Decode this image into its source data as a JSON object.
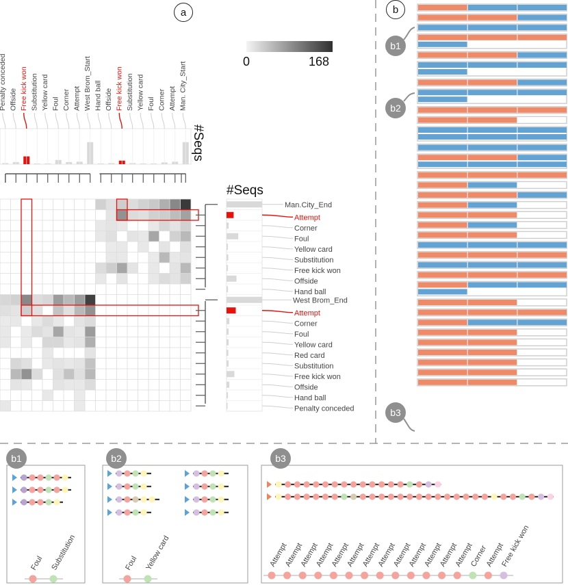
{
  "panel_labels": {
    "a": "a",
    "b": "b",
    "b1": "b1",
    "b2": "b2",
    "b3": "b3"
  },
  "legend": {
    "min": "0",
    "max": "168",
    "gradient_from": "#f4f4f4",
    "gradient_to": "#303030"
  },
  "colors": {
    "highlight": "#e8120c",
    "orange": "#ee8a68",
    "blue": "#63a3d4",
    "frame": "#cfcfcf",
    "badge": "#8f8f8f"
  },
  "seqs_label": "#Seqs",
  "top_labels": [
    "Penalty conceded",
    "Offside",
    "Free kick won",
    "Substitution",
    "Yellow card",
    "Foul",
    "Corner",
    "Attempt",
    "West Brom_Start",
    "Hand ball",
    "Offside",
    "Free kick won",
    "Substitution",
    "Yellow card",
    "Foul",
    "Corner",
    "Attempt",
    "Man. City_Start"
  ],
  "top_highlight": [
    2,
    11
  ],
  "top_hist": [
    0.03,
    0.06,
    0.22,
    0.02,
    0.02,
    0.12,
    0.06,
    0.07,
    0.62,
    0.02,
    0.03,
    0.1,
    0.03,
    0.02,
    0.02,
    0.05,
    0.07,
    0.62
  ],
  "right_labels": [
    "Man.City_End",
    "Attempt",
    "Corner",
    "Foul",
    "Yellow card",
    "Substitution",
    "Free kick won",
    "Offside",
    "Hand ball",
    "West Brom_End",
    "Attempt",
    "Corner",
    "Foul",
    "Yellow card",
    "Red card",
    "Substitution",
    "Free kick won",
    "Offside",
    "Hand ball",
    "Penalty conceded"
  ],
  "right_highlight": [
    1,
    10
  ],
  "right_hist": [
    1.0,
    0.2,
    0.06,
    0.33,
    0.04,
    0.05,
    0.04,
    0.28,
    0.04,
    1.0,
    0.26,
    0.08,
    0.06,
    0.06,
    0.05,
    0.06,
    0.22,
    0.08,
    0.04,
    0.03
  ],
  "matrix": {
    "rows": 20,
    "cols": 18,
    "cells": [
      [
        0,
        9,
        0.18
      ],
      [
        0,
        10,
        0.1
      ],
      [
        0,
        11,
        0.2
      ],
      [
        0,
        12,
        0.12
      ],
      [
        0,
        13,
        0.18
      ],
      [
        0,
        14,
        0.22
      ],
      [
        0,
        15,
        0.35
      ],
      [
        0,
        16,
        0.55
      ],
      [
        0,
        17,
        0.95
      ],
      [
        1,
        10,
        0.08
      ],
      [
        1,
        11,
        0.5
      ],
      [
        1,
        12,
        0.12
      ],
      [
        1,
        13,
        0.1
      ],
      [
        1,
        14,
        0.18
      ],
      [
        1,
        15,
        0.2
      ],
      [
        1,
        16,
        0.28
      ],
      [
        1,
        17,
        0.42
      ],
      [
        2,
        9,
        0.06
      ],
      [
        2,
        10,
        0.08
      ],
      [
        2,
        11,
        0.06
      ],
      [
        2,
        14,
        0.06
      ],
      [
        2,
        15,
        0.15
      ],
      [
        2,
        16,
        0.08
      ],
      [
        2,
        17,
        0.18
      ],
      [
        3,
        9,
        0.06
      ],
      [
        3,
        10,
        0.1
      ],
      [
        3,
        12,
        0.08
      ],
      [
        3,
        13,
        0.06
      ],
      [
        3,
        14,
        0.4
      ],
      [
        3,
        16,
        0.18
      ],
      [
        3,
        17,
        0.3
      ],
      [
        4,
        10,
        0.05
      ],
      [
        4,
        11,
        0.06
      ],
      [
        4,
        13,
        0.06
      ],
      [
        4,
        15,
        0.08
      ],
      [
        4,
        17,
        0.1
      ],
      [
        5,
        10,
        0.06
      ],
      [
        5,
        11,
        0.06
      ],
      [
        5,
        14,
        0.05
      ],
      [
        5,
        15,
        0.3
      ],
      [
        5,
        16,
        0.06
      ],
      [
        5,
        17,
        0.08
      ],
      [
        6,
        9,
        0.12
      ],
      [
        6,
        10,
        0.2
      ],
      [
        6,
        11,
        0.4
      ],
      [
        6,
        12,
        0.08
      ],
      [
        6,
        14,
        0.06
      ],
      [
        6,
        16,
        0.08
      ],
      [
        6,
        17,
        0.3
      ],
      [
        7,
        9,
        0.06
      ],
      [
        7,
        11,
        0.08
      ],
      [
        7,
        14,
        0.06
      ],
      [
        7,
        15,
        0.12
      ],
      [
        7,
        16,
        0.08
      ],
      [
        7,
        17,
        0.18
      ],
      [
        9,
        0,
        0.15
      ],
      [
        9,
        1,
        0.18
      ],
      [
        9,
        2,
        0.55
      ],
      [
        9,
        3,
        0.12
      ],
      [
        9,
        4,
        0.15
      ],
      [
        9,
        5,
        0.45
      ],
      [
        9,
        6,
        0.3
      ],
      [
        9,
        7,
        0.45
      ],
      [
        9,
        8,
        0.92
      ],
      [
        10,
        0,
        0.1
      ],
      [
        10,
        1,
        0.08
      ],
      [
        10,
        2,
        0.2
      ],
      [
        10,
        3,
        0.1
      ],
      [
        10,
        5,
        0.25
      ],
      [
        10,
        6,
        0.1
      ],
      [
        10,
        7,
        0.3
      ],
      [
        10,
        8,
        0.5
      ],
      [
        11,
        0,
        0.05
      ],
      [
        11,
        1,
        0.06
      ],
      [
        11,
        3,
        0.06
      ],
      [
        11,
        4,
        0.12
      ],
      [
        11,
        5,
        0.06
      ],
      [
        11,
        7,
        0.08
      ],
      [
        11,
        8,
        0.12
      ],
      [
        12,
        0,
        0.06
      ],
      [
        12,
        2,
        0.05
      ],
      [
        12,
        3,
        0.12
      ],
      [
        12,
        4,
        0.08
      ],
      [
        12,
        5,
        0.4
      ],
      [
        12,
        6,
        0.08
      ],
      [
        12,
        7,
        0.06
      ],
      [
        12,
        8,
        0.45
      ],
      [
        13,
        0,
        0.06
      ],
      [
        13,
        2,
        0.05
      ],
      [
        13,
        4,
        0.15
      ],
      [
        13,
        5,
        0.15
      ],
      [
        13,
        6,
        0.06
      ],
      [
        13,
        7,
        0.08
      ],
      [
        13,
        8,
        0.35
      ],
      [
        14,
        4,
        0.06
      ],
      [
        14,
        8,
        0.08
      ],
      [
        15,
        1,
        0.15
      ],
      [
        15,
        2,
        0.1
      ],
      [
        15,
        4,
        0.06
      ],
      [
        15,
        5,
        0.08
      ],
      [
        15,
        6,
        0.06
      ],
      [
        15,
        7,
        0.08
      ],
      [
        15,
        8,
        0.25
      ],
      [
        16,
        1,
        0.3
      ],
      [
        16,
        2,
        0.5
      ],
      [
        16,
        3,
        0.12
      ],
      [
        16,
        5,
        0.1
      ],
      [
        16,
        6,
        0.25
      ],
      [
        16,
        7,
        0.1
      ],
      [
        16,
        8,
        0.3
      ],
      [
        17,
        1,
        0.08
      ],
      [
        17,
        2,
        0.06
      ],
      [
        17,
        5,
        0.08
      ],
      [
        17,
        6,
        0.06
      ],
      [
        17,
        7,
        0.06
      ],
      [
        17,
        8,
        0.12
      ],
      [
        18,
        4,
        0.06
      ],
      [
        18,
        7,
        0.05
      ],
      [
        19,
        0,
        0.06
      ],
      [
        19,
        7,
        0.05
      ]
    ]
  },
  "seq_rows": [
    {
      "lane_colors": [
        "orange",
        "blue",
        "blue"
      ],
      "second_lane": ""
    },
    {
      "lane_colors": [
        "orange",
        "orange",
        "blue"
      ],
      "second_lane": ""
    },
    {
      "lane_colors": [
        "blue",
        "blue",
        "blue"
      ],
      "second_lane": ""
    },
    {
      "lane_colors": [
        "orange",
        "orange",
        "orange"
      ],
      "second_lane": "blue"
    },
    {
      "lane_colors": [
        "orange",
        "orange",
        "blue"
      ],
      "second_lane": ""
    },
    {
      "lane_colors": [
        "blue",
        "blue",
        "blue"
      ],
      "second_lane": "blue"
    },
    {
      "lane_colors": [
        "orange",
        "orange",
        "blue"
      ],
      "second_lane": ""
    },
    {
      "lane_colors": [
        "blue",
        "blue",
        "blue"
      ],
      "second_lane": "blue"
    },
    {
      "lane_colors": [
        "orange",
        "orange",
        "orange"
      ],
      "second_lane": ""
    },
    {
      "lane_colors": [
        "orange",
        "orange",
        ""
      ],
      "second_lane": ""
    },
    {
      "lane_colors": [
        "blue",
        "blue",
        "blue"
      ],
      "second_lane": "blue3"
    },
    {
      "lane_colors": [
        "blue",
        "blue",
        "blue"
      ],
      "second_lane": ""
    },
    {
      "lane_colors": [
        "orange",
        "orange",
        "blue"
      ],
      "second_lane": "blue3"
    },
    {
      "lane_colors": [
        "orange",
        "orange",
        "orange"
      ],
      "second_lane": ""
    },
    {
      "lane_colors": [
        "orange",
        "blue",
        ""
      ],
      "second_lane": ""
    },
    {
      "lane_colors": [
        "orange",
        "orange",
        "blue"
      ],
      "second_lane": ""
    },
    {
      "lane_colors": [
        "orange",
        "blue",
        ""
      ],
      "second_lane": ""
    },
    {
      "lane_colors": [
        "orange",
        "orange",
        ""
      ],
      "second_lane": ""
    },
    {
      "lane_colors": [
        "orange",
        "blue",
        ""
      ],
      "second_lane": ""
    },
    {
      "lane_colors": [
        "orange",
        "orange",
        ""
      ],
      "second_lane": ""
    },
    {
      "lane_colors": [
        "blue",
        "blue",
        "blue"
      ],
      "second_lane": ""
    },
    {
      "lane_colors": [
        "orange",
        "orange",
        "orange"
      ],
      "second_lane": ""
    },
    {
      "lane_colors": [
        "blue",
        "blue",
        "blue"
      ],
      "second_lane": ""
    },
    {
      "lane_colors": [
        "orange",
        "orange",
        "orange"
      ],
      "second_lane": ""
    },
    {
      "lane_colors": [
        "orange",
        "blue",
        "blue"
      ],
      "second_lane": "blue"
    },
    {
      "lane_colors": [
        "orange",
        "orange",
        ""
      ],
      "second_lane": ""
    },
    {
      "lane_colors": [
        "orange",
        "orange",
        "orange"
      ],
      "second_lane": ""
    },
    {
      "lane_colors": [
        "orange",
        "blue",
        "blue"
      ],
      "second_lane": ""
    },
    {
      "lane_colors": [
        "orange",
        "orange",
        ""
      ],
      "second_lane": ""
    },
    {
      "lane_colors": [
        "orange",
        "orange",
        ""
      ],
      "second_lane": ""
    },
    {
      "lane_colors": [
        "orange",
        "orange",
        ""
      ],
      "second_lane": ""
    },
    {
      "lane_colors": [
        "orange",
        "orange",
        ""
      ],
      "second_lane": ""
    },
    {
      "lane_colors": [
        "orange",
        "orange",
        ""
      ],
      "second_lane": ""
    },
    {
      "lane_colors": [
        "orange",
        "orange",
        ""
      ],
      "second_lane": ""
    }
  ],
  "b1": {
    "rows": [
      [
        "#b8a4cf",
        "#f4a49c",
        "#f4a49c",
        "#bfe3b4",
        "#f4a49c",
        "#fdf6b8"
      ],
      [
        "#b8a4cf",
        "#f4a49c",
        "#f4a49c",
        "#bfe3b4",
        "#f4a49c",
        "#fdf6b8"
      ],
      [
        "#b8a4cf",
        "#f4a49c",
        "#f4a49c",
        "#bfe3b4",
        "#fdf6b8"
      ]
    ],
    "legend": [
      {
        "label": "Foul",
        "color": "#f4a49c"
      },
      {
        "label": "Substitution",
        "color": "#bfe3b4"
      }
    ]
  },
  "b2": {
    "left_rows": [
      [
        "#d4bfe0",
        "#f4a49c",
        "#bfe3b4",
        "#fdf6b8"
      ],
      [
        "#d4bfe0",
        "#f4a49c",
        "#bfe3b4",
        "#fdf6b8"
      ],
      [
        "#d4bfe0",
        "#f4a49c",
        "#d9cbb1",
        "#fdf6b8",
        "#fdf6b8"
      ],
      [
        "#d4bfe0",
        "#f4a49c",
        "#bfe3b4",
        "#fdf6b8"
      ]
    ],
    "right_rows": [
      [
        "#d4bfe0",
        "#f4a49c",
        "#bfe3b4",
        "#fdf6b8"
      ],
      [
        "#d4bfe0",
        "#f4a49c",
        "#bfe3b4",
        "#fdf6b8"
      ],
      [
        "#d4bfe0",
        "#f4a49c",
        "#bfe3b4",
        "#fdf6b8"
      ],
      [
        "#d4bfe0",
        "#f4a49c",
        "#bfe3b4",
        "#fdf6b8"
      ]
    ],
    "legend": [
      {
        "label": "Foul",
        "color": "#f4a49c"
      },
      {
        "label": "Yellow card",
        "color": "#bfe3b4"
      }
    ]
  },
  "b3": {
    "rows": [
      [
        "#fdf6b8",
        "#f4a49c",
        "#f4a49c",
        "#f4a49c",
        "#f4a49c",
        "#f4a49c",
        "#f4a49c",
        "#f4a49c",
        "#f4a49c",
        "#f4a49c",
        "#f4a49c",
        "#f4a49c",
        "#f4a49c",
        "#f4a49c",
        "#bfe3b4",
        "#f4a49c",
        "#d4bfe0",
        "#fbd3e4"
      ],
      [
        "#fdf6b8",
        "#f4a49c",
        "#f4a49c",
        "#f4a49c",
        "#f4a49c",
        "#f4a49c",
        "#f4a49c",
        "#bfe3b4",
        "#d9cbb1",
        "#f4a49c",
        "#f4a49c",
        "#f4a49c",
        "#f4a49c",
        "#f4a49c",
        "#f4a49c",
        "#f4a49c",
        "#f4a49c",
        "#f4a49c",
        "#f4a49c",
        "#f4a49c",
        "#f4a49c",
        "#f4a49c",
        "#f4a49c",
        "#fdf6b8",
        "#f4a49c",
        "#f4a49c",
        "#bfe3b4",
        "#f4a49c",
        "#d4bfe0",
        "#fbd3e4"
      ]
    ],
    "legend": [
      {
        "label": "Attempt",
        "color": "#f4a49c"
      },
      {
        "label": "Attempt",
        "color": "#f4a49c"
      },
      {
        "label": "Attempt",
        "color": "#f4a49c"
      },
      {
        "label": "Attempt",
        "color": "#f4a49c"
      },
      {
        "label": "Attempt",
        "color": "#f4a49c"
      },
      {
        "label": "Attempt",
        "color": "#f4a49c"
      },
      {
        "label": "Attempt",
        "color": "#f4a49c"
      },
      {
        "label": "Attempt",
        "color": "#f4a49c"
      },
      {
        "label": "Attempt",
        "color": "#f4a49c"
      },
      {
        "label": "Attempt",
        "color": "#f4a49c"
      },
      {
        "label": "Attempt",
        "color": "#f4a49c"
      },
      {
        "label": "Attempt",
        "color": "#f4a49c"
      },
      {
        "label": "Attempt",
        "color": "#f4a49c"
      },
      {
        "label": "Corner",
        "color": "#bfe3b4"
      },
      {
        "label": "Attempt",
        "color": "#f4a49c"
      },
      {
        "label": "Free kick won",
        "color": "#d4bfe0"
      }
    ]
  }
}
